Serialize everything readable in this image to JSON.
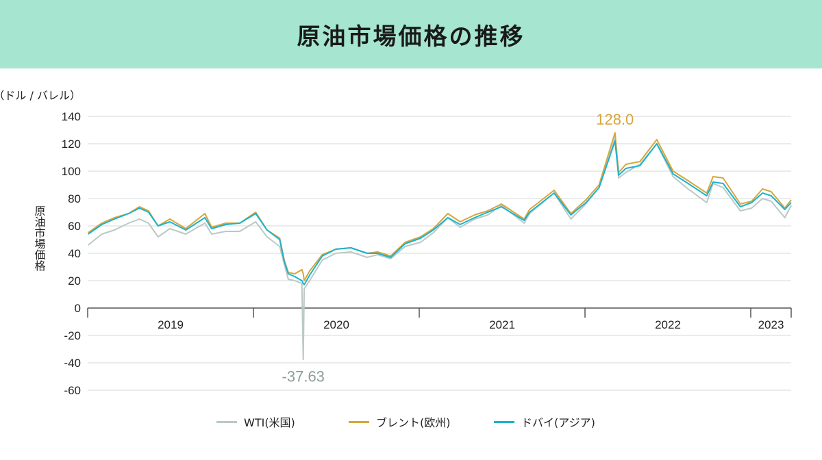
{
  "title": "原油市場価格の推移",
  "chart_data": {
    "type": "line",
    "title": "原油市場価格の推移",
    "ylabel": "原油市場価格",
    "unit": "（ドル / バレル）",
    "ylim": [
      -60,
      140
    ],
    "yticks": [
      140,
      120,
      100,
      80,
      60,
      40,
      20,
      0,
      -20,
      -40,
      -60
    ],
    "xlim": [
      "2019-01-01",
      "2023-03-31"
    ],
    "year_labels": [
      "2019",
      "2020",
      "2021",
      "2022",
      "2023"
    ],
    "grid": true,
    "legend": "bottom",
    "annotations": [
      {
        "text": "128.0",
        "series": "ブレント(欧州)",
        "date": "2022-03-08",
        "value": 128.0
      },
      {
        "text": "-37.63",
        "series": "WTI(米国)",
        "date": "2020-04-20",
        "value": -37.63
      }
    ],
    "series": [
      {
        "name": "WTI(米国)",
        "color": "#b9c9c7",
        "points": [
          [
            "2019-01-02",
            46
          ],
          [
            "2019-02-01",
            54
          ],
          [
            "2019-03-01",
            57
          ],
          [
            "2019-04-01",
            62
          ],
          [
            "2019-04-25",
            65
          ],
          [
            "2019-05-15",
            62
          ],
          [
            "2019-06-05",
            52
          ],
          [
            "2019-07-01",
            58
          ],
          [
            "2019-08-05",
            54
          ],
          [
            "2019-09-16",
            62
          ],
          [
            "2019-10-01",
            54
          ],
          [
            "2019-11-01",
            56
          ],
          [
            "2019-12-02",
            56
          ],
          [
            "2020-01-06",
            63
          ],
          [
            "2020-01-31",
            52
          ],
          [
            "2020-02-28",
            45
          ],
          [
            "2020-03-09",
            32
          ],
          [
            "2020-03-18",
            21
          ],
          [
            "2020-04-01",
            20
          ],
          [
            "2020-04-17",
            18
          ],
          [
            "2020-04-20",
            -37.63
          ],
          [
            "2020-04-22",
            14
          ],
          [
            "2020-05-04",
            20
          ],
          [
            "2020-06-01",
            35
          ],
          [
            "2020-07-01",
            40
          ],
          [
            "2020-08-03",
            41
          ],
          [
            "2020-09-08",
            37
          ],
          [
            "2020-10-01",
            39
          ],
          [
            "2020-10-30",
            36
          ],
          [
            "2020-12-01",
            45
          ],
          [
            "2021-01-04",
            48
          ],
          [
            "2021-02-01",
            55
          ],
          [
            "2021-03-05",
            66
          ],
          [
            "2021-04-01",
            59
          ],
          [
            "2021-05-03",
            65
          ],
          [
            "2021-06-01",
            68
          ],
          [
            "2021-07-01",
            75
          ],
          [
            "2021-08-20",
            62
          ],
          [
            "2021-09-01",
            69
          ],
          [
            "2021-10-25",
            84
          ],
          [
            "2021-12-01",
            65
          ],
          [
            "2022-01-03",
            76
          ],
          [
            "2022-02-01",
            88
          ],
          [
            "2022-03-08",
            124
          ],
          [
            "2022-03-16",
            95
          ],
          [
            "2022-04-01",
            99
          ],
          [
            "2022-05-02",
            105
          ],
          [
            "2022-06-08",
            120
          ],
          [
            "2022-07-14",
            96
          ],
          [
            "2022-08-16",
            87
          ],
          [
            "2022-09-26",
            77
          ],
          [
            "2022-10-10",
            91
          ],
          [
            "2022-11-01",
            88
          ],
          [
            "2022-12-09",
            71
          ],
          [
            "2023-01-03",
            73
          ],
          [
            "2023-01-27",
            80
          ],
          [
            "2023-02-15",
            78
          ],
          [
            "2023-03-17",
            66
          ],
          [
            "2023-03-31",
            75
          ]
        ]
      },
      {
        "name": "ブレント(欧州)",
        "color": "#d6a63c",
        "points": [
          [
            "2019-01-02",
            55
          ],
          [
            "2019-02-01",
            62
          ],
          [
            "2019-03-01",
            66
          ],
          [
            "2019-04-01",
            69
          ],
          [
            "2019-04-25",
            74
          ],
          [
            "2019-05-15",
            71
          ],
          [
            "2019-06-05",
            60
          ],
          [
            "2019-07-01",
            65
          ],
          [
            "2019-08-05",
            58
          ],
          [
            "2019-09-16",
            69
          ],
          [
            "2019-10-01",
            59
          ],
          [
            "2019-11-01",
            62
          ],
          [
            "2019-12-02",
            62
          ],
          [
            "2020-01-06",
            70
          ],
          [
            "2020-01-31",
            57
          ],
          [
            "2020-02-28",
            51
          ],
          [
            "2020-03-09",
            35
          ],
          [
            "2020-03-18",
            26
          ],
          [
            "2020-04-01",
            25
          ],
          [
            "2020-04-17",
            28
          ],
          [
            "2020-04-20",
            25
          ],
          [
            "2020-04-22",
            20
          ],
          [
            "2020-05-04",
            27
          ],
          [
            "2020-06-01",
            39
          ],
          [
            "2020-07-01",
            43
          ],
          [
            "2020-08-03",
            44
          ],
          [
            "2020-09-08",
            40
          ],
          [
            "2020-10-01",
            41
          ],
          [
            "2020-10-30",
            38
          ],
          [
            "2020-12-01",
            48
          ],
          [
            "2021-01-04",
            52
          ],
          [
            "2021-02-01",
            58
          ],
          [
            "2021-03-05",
            69
          ],
          [
            "2021-04-01",
            63
          ],
          [
            "2021-05-03",
            68
          ],
          [
            "2021-06-01",
            71
          ],
          [
            "2021-07-01",
            76
          ],
          [
            "2021-08-20",
            65
          ],
          [
            "2021-09-01",
            72
          ],
          [
            "2021-10-25",
            86
          ],
          [
            "2021-12-01",
            69
          ],
          [
            "2022-01-03",
            79
          ],
          [
            "2022-02-01",
            90
          ],
          [
            "2022-03-08",
            128.0
          ],
          [
            "2022-03-16",
            99
          ],
          [
            "2022-04-01",
            105
          ],
          [
            "2022-05-02",
            107
          ],
          [
            "2022-06-08",
            123
          ],
          [
            "2022-07-14",
            100
          ],
          [
            "2022-08-16",
            93
          ],
          [
            "2022-09-26",
            84
          ],
          [
            "2022-10-10",
            96
          ],
          [
            "2022-11-01",
            95
          ],
          [
            "2022-12-09",
            76
          ],
          [
            "2023-01-03",
            78
          ],
          [
            "2023-01-27",
            87
          ],
          [
            "2023-02-15",
            85
          ],
          [
            "2023-03-17",
            73
          ],
          [
            "2023-03-31",
            79
          ]
        ]
      },
      {
        "name": "ドバイ(アジア)",
        "color": "#1cb3cd",
        "points": [
          [
            "2019-01-02",
            54
          ],
          [
            "2019-02-01",
            61
          ],
          [
            "2019-03-01",
            65
          ],
          [
            "2019-04-01",
            69
          ],
          [
            "2019-04-25",
            73
          ],
          [
            "2019-05-15",
            70
          ],
          [
            "2019-06-05",
            60
          ],
          [
            "2019-07-01",
            63
          ],
          [
            "2019-08-05",
            57
          ],
          [
            "2019-09-16",
            66
          ],
          [
            "2019-10-01",
            58
          ],
          [
            "2019-11-01",
            61
          ],
          [
            "2019-12-02",
            62
          ],
          [
            "2020-01-06",
            69
          ],
          [
            "2020-01-31",
            57
          ],
          [
            "2020-02-28",
            50
          ],
          [
            "2020-03-09",
            34
          ],
          [
            "2020-03-18",
            25
          ],
          [
            "2020-04-01",
            23
          ],
          [
            "2020-04-17",
            20
          ],
          [
            "2020-04-20",
            18
          ],
          [
            "2020-04-22",
            17
          ],
          [
            "2020-05-04",
            24
          ],
          [
            "2020-06-01",
            38
          ],
          [
            "2020-07-01",
            43
          ],
          [
            "2020-08-03",
            44
          ],
          [
            "2020-09-08",
            40
          ],
          [
            "2020-10-01",
            40
          ],
          [
            "2020-10-30",
            37
          ],
          [
            "2020-12-01",
            47
          ],
          [
            "2021-01-04",
            51
          ],
          [
            "2021-02-01",
            57
          ],
          [
            "2021-03-05",
            66
          ],
          [
            "2021-04-01",
            61
          ],
          [
            "2021-05-03",
            66
          ],
          [
            "2021-06-01",
            70
          ],
          [
            "2021-07-01",
            74
          ],
          [
            "2021-08-20",
            64
          ],
          [
            "2021-09-01",
            70
          ],
          [
            "2021-10-25",
            84
          ],
          [
            "2021-12-01",
            68
          ],
          [
            "2022-01-03",
            77
          ],
          [
            "2022-02-01",
            88
          ],
          [
            "2022-03-08",
            122
          ],
          [
            "2022-03-16",
            97
          ],
          [
            "2022-04-01",
            102
          ],
          [
            "2022-05-02",
            104
          ],
          [
            "2022-06-08",
            120
          ],
          [
            "2022-07-14",
            98
          ],
          [
            "2022-08-16",
            91
          ],
          [
            "2022-09-26",
            82
          ],
          [
            "2022-10-10",
            92
          ],
          [
            "2022-11-01",
            91
          ],
          [
            "2022-12-09",
            74
          ],
          [
            "2023-01-03",
            77
          ],
          [
            "2023-01-27",
            84
          ],
          [
            "2023-02-15",
            82
          ],
          [
            "2023-03-17",
            72
          ],
          [
            "2023-03-31",
            77
          ]
        ]
      }
    ]
  }
}
